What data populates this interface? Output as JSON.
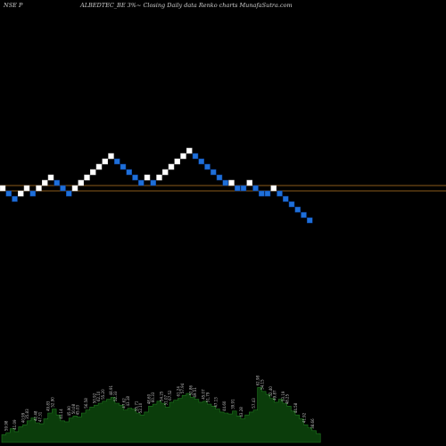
{
  "chart_data": {
    "type": "renko",
    "header": {
      "exchange": "NSE P",
      "title": "ALBEDTEC_BE 3%~  Closing Daily data  Renko  charts MunafaSutra.com"
    },
    "colors": {
      "background": "#000000",
      "up_brick": "#ffffff",
      "down_brick": "#1e6fd9",
      "down_brick_border": "#0a3a8c",
      "reference_line": "#8a5a1a",
      "volume_fill": "#0b3d0b",
      "volume_line": "#1f7a1f"
    },
    "brick_pct": 3,
    "bricks": [
      {
        "level": 0,
        "dir": "up"
      },
      {
        "level": -1,
        "dir": "down"
      },
      {
        "level": -2,
        "dir": "down"
      },
      {
        "level": -1,
        "dir": "up"
      },
      {
        "level": 0,
        "dir": "up"
      },
      {
        "level": -1,
        "dir": "down"
      },
      {
        "level": 0,
        "dir": "up"
      },
      {
        "level": 1,
        "dir": "up"
      },
      {
        "level": 2,
        "dir": "up"
      },
      {
        "level": 1,
        "dir": "down"
      },
      {
        "level": 0,
        "dir": "down"
      },
      {
        "level": -1,
        "dir": "down"
      },
      {
        "level": 0,
        "dir": "up"
      },
      {
        "level": 1,
        "dir": "up"
      },
      {
        "level": 2,
        "dir": "up"
      },
      {
        "level": 3,
        "dir": "up"
      },
      {
        "level": 4,
        "dir": "up"
      },
      {
        "level": 5,
        "dir": "up"
      },
      {
        "level": 6,
        "dir": "up"
      },
      {
        "level": 5,
        "dir": "down"
      },
      {
        "level": 4,
        "dir": "down"
      },
      {
        "level": 3,
        "dir": "down"
      },
      {
        "level": 2,
        "dir": "down"
      },
      {
        "level": 1,
        "dir": "down"
      },
      {
        "level": 2,
        "dir": "up"
      },
      {
        "level": 1,
        "dir": "down"
      },
      {
        "level": 2,
        "dir": "up"
      },
      {
        "level": 3,
        "dir": "up"
      },
      {
        "level": 4,
        "dir": "up"
      },
      {
        "level": 5,
        "dir": "up"
      },
      {
        "level": 6,
        "dir": "up"
      },
      {
        "level": 7,
        "dir": "up"
      },
      {
        "level": 6,
        "dir": "down"
      },
      {
        "level": 5,
        "dir": "down"
      },
      {
        "level": 4,
        "dir": "down"
      },
      {
        "level": 3,
        "dir": "down"
      },
      {
        "level": 2,
        "dir": "down"
      },
      {
        "level": 1,
        "dir": "down"
      },
      {
        "level": 1,
        "dir": "up"
      },
      {
        "level": 0,
        "dir": "down"
      },
      {
        "level": 0,
        "dir": "down"
      },
      {
        "level": 1,
        "dir": "up"
      },
      {
        "level": 0,
        "dir": "down"
      },
      {
        "level": -1,
        "dir": "down"
      },
      {
        "level": -1,
        "dir": "down"
      },
      {
        "level": 0,
        "dir": "up"
      },
      {
        "level": -1,
        "dir": "down"
      },
      {
        "level": -2,
        "dir": "down"
      },
      {
        "level": -3,
        "dir": "down"
      },
      {
        "level": -4,
        "dir": "down"
      },
      {
        "level": -5,
        "dir": "down"
      },
      {
        "level": -6,
        "dir": "down"
      }
    ],
    "reference_levels": [
      0.5,
      -0.5
    ],
    "volume": [
      8,
      10,
      14,
      11,
      16,
      18,
      22,
      25,
      20,
      19,
      24,
      30,
      34,
      28,
      22,
      21,
      25,
      27,
      26,
      30,
      33,
      36,
      38,
      40,
      42,
      44,
      46,
      40,
      38,
      33,
      35,
      34,
      30,
      28,
      31,
      37,
      39,
      42,
      40,
      36,
      41,
      43,
      45,
      48,
      50,
      46,
      44,
      41,
      42,
      39,
      37,
      34,
      31,
      30,
      29,
      32,
      27,
      24,
      28,
      31,
      33,
      56,
      52,
      49,
      45,
      41,
      44,
      40,
      37,
      32,
      28,
      24,
      18,
      15,
      12,
      9
    ],
    "volume_labels": [
      {
        "i": 1,
        "text": "59.98"
      },
      {
        "i": 3,
        "text": "41.09"
      },
      {
        "i": 5,
        "text": "40.99"
      },
      {
        "i": 6,
        "text": "35.83"
      },
      {
        "i": 8,
        "text": "42.48"
      },
      {
        "i": 9,
        "text": "47.31"
      },
      {
        "i": 11,
        "text": "49.83"
      },
      {
        "i": 12,
        "text": "52.90"
      },
      {
        "i": 14,
        "text": "41.14"
      },
      {
        "i": 16,
        "text": "45.90"
      },
      {
        "i": 17,
        "text": "50.08"
      },
      {
        "i": 18,
        "text": "45.03"
      },
      {
        "i": 20,
        "text": "56.58"
      },
      {
        "i": 22,
        "text": "50.92"
      },
      {
        "i": 23,
        "text": "62.10"
      },
      {
        "i": 24,
        "text": "55.20"
      },
      {
        "i": 26,
        "text": "48.91"
      },
      {
        "i": 27,
        "text": "52.33"
      },
      {
        "i": 29,
        "text": "47.62"
      },
      {
        "i": 30,
        "text": "43.18"
      },
      {
        "i": 32,
        "text": "55.71"
      },
      {
        "i": 33,
        "text": "52.10"
      },
      {
        "i": 35,
        "text": "48.60"
      },
      {
        "i": 36,
        "text": "60.33"
      },
      {
        "i": 38,
        "text": "54.25"
      },
      {
        "i": 39,
        "text": "51.07"
      },
      {
        "i": 40,
        "text": "67.52"
      },
      {
        "i": 42,
        "text": "61.24"
      },
      {
        "i": 43,
        "text": "57.94"
      },
      {
        "i": 45,
        "text": "52.86"
      },
      {
        "i": 46,
        "text": "49.51"
      },
      {
        "i": 48,
        "text": "45.07"
      },
      {
        "i": 49,
        "text": "51.79"
      },
      {
        "i": 51,
        "text": "47.13"
      },
      {
        "i": 53,
        "text": "44.60"
      },
      {
        "i": 55,
        "text": "39.91"
      },
      {
        "i": 57,
        "text": "43.28"
      },
      {
        "i": 60,
        "text": "57.43"
      },
      {
        "i": 61,
        "text": "62.98"
      },
      {
        "i": 62,
        "text": "54.15"
      },
      {
        "i": 64,
        "text": "52.40"
      },
      {
        "i": 65,
        "text": "49.87"
      },
      {
        "i": 67,
        "text": "53.19"
      },
      {
        "i": 68,
        "text": "48.25"
      },
      {
        "i": 70,
        "text": "44.58"
      },
      {
        "i": 72,
        "text": "41.92"
      },
      {
        "i": 74,
        "text": "38.66"
      }
    ]
  }
}
